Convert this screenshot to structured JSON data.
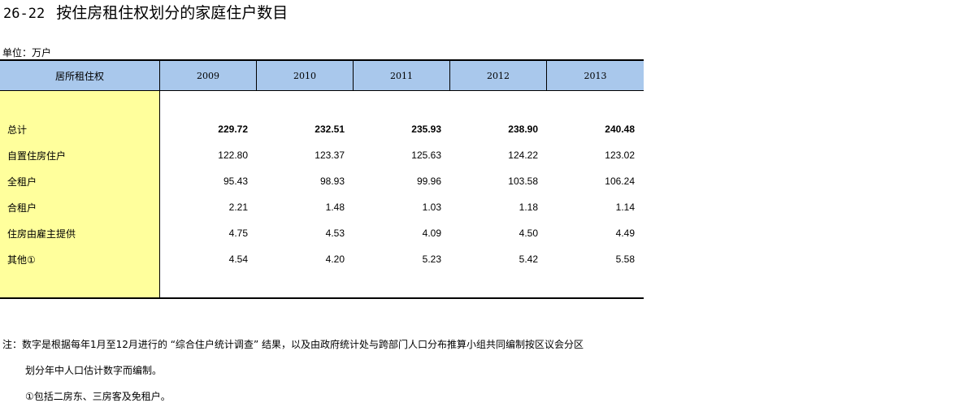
{
  "title": {
    "number": "26-22",
    "text": "按住房租住权划分的家庭住户数目"
  },
  "unit": "单位：万户",
  "table": {
    "stub_header": "居所租住权",
    "years": [
      "2009",
      "2010",
      "2011",
      "2012",
      "2013"
    ],
    "rows": [
      {
        "label": "总计",
        "values": [
          "229.72",
          "232.51",
          "235.93",
          "238.90",
          "240.48"
        ],
        "bold": true
      },
      {
        "label": "自置住房住户",
        "values": [
          "122.80",
          "123.37",
          "125.63",
          "124.22",
          "123.02"
        ]
      },
      {
        "label": "全租户",
        "values": [
          "95.43",
          "98.93",
          "99.96",
          "103.58",
          "106.24"
        ]
      },
      {
        "label": "合租户",
        "values": [
          "2.21",
          "1.48",
          "1.03",
          "1.18",
          "1.14"
        ]
      },
      {
        "label": "住房由雇主提供",
        "values": [
          "4.75",
          "4.53",
          "4.09",
          "4.50",
          "4.49"
        ]
      },
      {
        "label": "其他①",
        "values": [
          "4.54",
          "4.20",
          "5.23",
          "5.42",
          "5.58"
        ]
      }
    ]
  },
  "notes": {
    "line1": "注：数字是根据每年1月至12月进行的 “综合住户统计调查” 结果，以及由政府统计处与跨部门人口分布推算小组共同编制按区议会分区",
    "line2": "划分年中人口估计数字而编制。",
    "line3": "①包括二房东、三房客及免租户。"
  },
  "colors": {
    "header_bg": "#a9c8ec",
    "stub_bg": "#ffff9c"
  }
}
